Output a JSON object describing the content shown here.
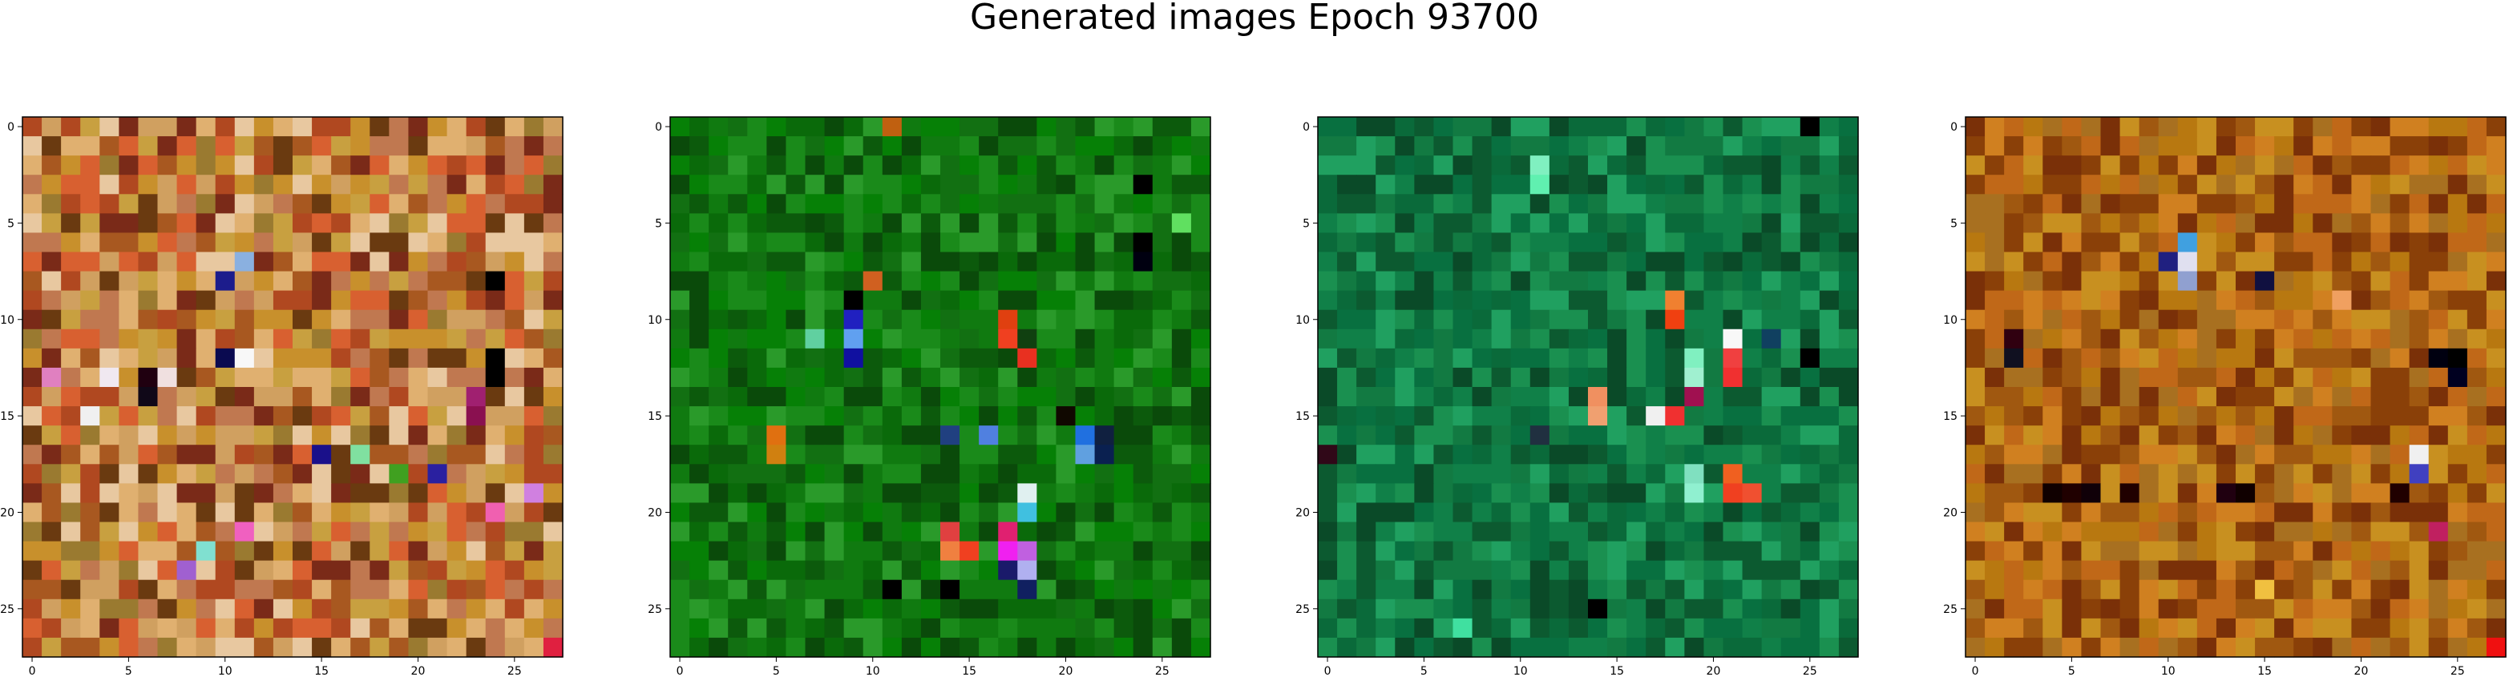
{
  "figure": {
    "title": "Generated images Epoch 93700"
  },
  "chart_data": [
    {
      "type": "heatmap",
      "title": "",
      "xlabel": "",
      "ylabel": "",
      "grid_size": 28,
      "xlim": [
        -0.5,
        27.5
      ],
      "ylim": [
        27.5,
        -0.5
      ],
      "x_ticks": [
        0,
        5,
        10,
        15,
        20,
        25
      ],
      "y_ticks": [
        0,
        5,
        10,
        15,
        20,
        25
      ],
      "x_tick_labels": [
        "0",
        "5",
        "10",
        "15",
        "20",
        "25"
      ],
      "y_tick_labels": [
        "0",
        "5",
        "10",
        "15",
        "20",
        "25"
      ],
      "palette": [
        "#c8902c",
        "#a85820",
        "#d0a060",
        "#7a2a18",
        "#c8a040",
        "#e0b070",
        "#9a7a30",
        "#d86030",
        "#b04820",
        "#e8c8a0",
        "#6a3a10",
        "#c07850"
      ],
      "accent_pixels": [
        {
          "row": 8,
          "col": 10,
          "color": "#1c1c8c"
        },
        {
          "row": 7,
          "col": 11,
          "color": "#8ab0e0"
        },
        {
          "row": 12,
          "col": 10,
          "color": "#0a0a50"
        },
        {
          "row": 12,
          "col": 11,
          "color": "#f8f8f8"
        },
        {
          "row": 13,
          "col": 7,
          "color": "#f0e0e0"
        },
        {
          "row": 13,
          "col": 6,
          "color": "#200010"
        },
        {
          "row": 14,
          "col": 6,
          "color": "#100818"
        },
        {
          "row": 12,
          "col": 24,
          "color": "#000000"
        },
        {
          "row": 13,
          "col": 24,
          "color": "#000000"
        },
        {
          "row": 8,
          "col": 24,
          "color": "#000000"
        },
        {
          "row": 14,
          "col": 23,
          "color": "#a02070"
        },
        {
          "row": 15,
          "col": 23,
          "color": "#8a1050"
        },
        {
          "row": 17,
          "col": 15,
          "color": "#1a108a"
        },
        {
          "row": 18,
          "col": 21,
          "color": "#2a20a0"
        },
        {
          "row": 17,
          "col": 17,
          "color": "#80e0a0"
        },
        {
          "row": 18,
          "col": 19,
          "color": "#40a020"
        },
        {
          "row": 13,
          "col": 1,
          "color": "#e080c0"
        },
        {
          "row": 21,
          "col": 11,
          "color": "#f060c0"
        },
        {
          "row": 23,
          "col": 8,
          "color": "#a060d0"
        },
        {
          "row": 22,
          "col": 9,
          "color": "#80e0d0"
        },
        {
          "row": 20,
          "col": 24,
          "color": "#f060b0"
        },
        {
          "row": 27,
          "col": 27,
          "color": "#e02040"
        },
        {
          "row": 15,
          "col": 3,
          "color": "#f0f0f0"
        },
        {
          "row": 13,
          "col": 4,
          "color": "#f0e8f0"
        },
        {
          "row": 19,
          "col": 26,
          "color": "#d080e0"
        }
      ]
    },
    {
      "type": "heatmap",
      "title": "",
      "xlabel": "",
      "ylabel": "",
      "grid_size": 28,
      "xlim": [
        -0.5,
        27.5
      ],
      "ylim": [
        27.5,
        -0.5
      ],
      "x_ticks": [
        0,
        5,
        10,
        15,
        20,
        25
      ],
      "y_ticks": [
        0,
        5,
        10,
        15,
        20,
        25
      ],
      "x_tick_labels": [
        "0",
        "5",
        "10",
        "15",
        "20",
        "25"
      ],
      "y_tick_labels": [
        "0",
        "5",
        "10",
        "15",
        "20",
        "25"
      ],
      "palette": [
        "#0a6a0a",
        "#107a10",
        "#0c5a0c",
        "#1a8a1a",
        "#0a4a0a",
        "#2a9a2a",
        "#068006",
        "#127012"
      ],
      "accent_pixels": [
        {
          "row": 0,
          "col": 11,
          "color": "#c06010"
        },
        {
          "row": 9,
          "col": 9,
          "color": "#000000"
        },
        {
          "row": 10,
          "col": 9,
          "color": "#000010"
        },
        {
          "row": 11,
          "col": 9,
          "color": "#000000"
        },
        {
          "row": 12,
          "col": 9,
          "color": "#000000"
        },
        {
          "row": 8,
          "col": 10,
          "color": "#d06020"
        },
        {
          "row": 10,
          "col": 9,
          "color": "#2020c0"
        },
        {
          "row": 11,
          "col": 9,
          "color": "#60a0f0"
        },
        {
          "row": 11,
          "col": 7,
          "color": "#60d0a0"
        },
        {
          "row": 12,
          "col": 9,
          "color": "#1010a0"
        },
        {
          "row": 10,
          "col": 17,
          "color": "#e04010"
        },
        {
          "row": 11,
          "col": 17,
          "color": "#f04020"
        },
        {
          "row": 12,
          "col": 18,
          "color": "#e83020"
        },
        {
          "row": 11,
          "col": 18,
          "color": "#104010"
        },
        {
          "row": 16,
          "col": 5,
          "color": "#e07010"
        },
        {
          "row": 17,
          "col": 5,
          "color": "#d08010"
        },
        {
          "row": 16,
          "col": 16,
          "color": "#5080e0"
        },
        {
          "row": 16,
          "col": 14,
          "color": "#204080"
        },
        {
          "row": 16,
          "col": 21,
          "color": "#2070e0"
        },
        {
          "row": 17,
          "col": 21,
          "color": "#60a0e0"
        },
        {
          "row": 16,
          "col": 22,
          "color": "#102040"
        },
        {
          "row": 17,
          "col": 22,
          "color": "#0a2050"
        },
        {
          "row": 15,
          "col": 20,
          "color": "#100800"
        },
        {
          "row": 19,
          "col": 18,
          "color": "#e0f0f0"
        },
        {
          "row": 20,
          "col": 18,
          "color": "#40c0e0"
        },
        {
          "row": 21,
          "col": 17,
          "color": "#e02070"
        },
        {
          "row": 22,
          "col": 17,
          "color": "#f020f0"
        },
        {
          "row": 22,
          "col": 18,
          "color": "#c060e0"
        },
        {
          "row": 23,
          "col": 17,
          "color": "#1a1a6a"
        },
        {
          "row": 23,
          "col": 18,
          "color": "#b0b0f0"
        },
        {
          "row": 21,
          "col": 14,
          "color": "#e04040"
        },
        {
          "row": 22,
          "col": 14,
          "color": "#f08040"
        },
        {
          "row": 22,
          "col": 15,
          "color": "#f04020"
        },
        {
          "row": 24,
          "col": 14,
          "color": "#000000"
        },
        {
          "row": 24,
          "col": 18,
          "color": "#102060"
        },
        {
          "row": 24,
          "col": 11,
          "color": "#000000"
        },
        {
          "row": 3,
          "col": 24,
          "color": "#000000"
        },
        {
          "row": 6,
          "col": 24,
          "color": "#000000"
        },
        {
          "row": 7,
          "col": 24,
          "color": "#000010"
        },
        {
          "row": 5,
          "col": 26,
          "color": "#60e060"
        }
      ]
    },
    {
      "type": "heatmap",
      "title": "",
      "xlabel": "",
      "ylabel": "",
      "grid_size": 28,
      "xlim": [
        -0.5,
        27.5
      ],
      "ylim": [
        27.5,
        -0.5
      ],
      "x_ticks": [
        0,
        5,
        10,
        15,
        20,
        25
      ],
      "y_ticks": [
        0,
        5,
        10,
        15,
        20,
        25
      ],
      "x_tick_labels": [
        "0",
        "5",
        "10",
        "15",
        "20",
        "25"
      ],
      "y_tick_labels": [
        "0",
        "5",
        "10",
        "15",
        "20",
        "25"
      ],
      "palette": [
        "#0a6a3a",
        "#108048",
        "#0c5a30",
        "#1a9050",
        "#0a4a28",
        "#20a060",
        "#087040",
        "#127a42"
      ],
      "accent_pixels": [
        {
          "row": 9,
          "col": 18,
          "color": "#f08030"
        },
        {
          "row": 10,
          "col": 18,
          "color": "#f04010"
        },
        {
          "row": 11,
          "col": 21,
          "color": "#f8f8f8"
        },
        {
          "row": 12,
          "col": 21,
          "color": "#f04040"
        },
        {
          "row": 13,
          "col": 21,
          "color": "#f03030"
        },
        {
          "row": 12,
          "col": 19,
          "color": "#80f0c0"
        },
        {
          "row": 13,
          "col": 19,
          "color": "#a0f0d0"
        },
        {
          "row": 14,
          "col": 19,
          "color": "#a01050"
        },
        {
          "row": 14,
          "col": 14,
          "color": "#f09060"
        },
        {
          "row": 15,
          "col": 14,
          "color": "#f0a070"
        },
        {
          "row": 15,
          "col": 17,
          "color": "#f0f0f0"
        },
        {
          "row": 15,
          "col": 18,
          "color": "#f03030"
        },
        {
          "row": 16,
          "col": 11,
          "color": "#203040"
        },
        {
          "row": 18,
          "col": 21,
          "color": "#f06020"
        },
        {
          "row": 19,
          "col": 21,
          "color": "#f04020"
        },
        {
          "row": 19,
          "col": 22,
          "color": "#f05030"
        },
        {
          "row": 18,
          "col": 19,
          "color": "#80e0c0"
        },
        {
          "row": 19,
          "col": 19,
          "color": "#90f0d0"
        },
        {
          "row": 12,
          "col": 25,
          "color": "#000000"
        },
        {
          "row": 11,
          "col": 23,
          "color": "#104060"
        },
        {
          "row": 17,
          "col": 0,
          "color": "#300818"
        },
        {
          "row": 25,
          "col": 14,
          "color": "#000000"
        },
        {
          "row": 26,
          "col": 7,
          "color": "#40e0a0"
        },
        {
          "row": 2,
          "col": 11,
          "color": "#80f0c0"
        },
        {
          "row": 3,
          "col": 11,
          "color": "#60f0b0"
        },
        {
          "row": 0,
          "col": 25,
          "color": "#000000"
        }
      ]
    },
    {
      "type": "heatmap",
      "title": "",
      "xlabel": "",
      "ylabel": "",
      "grid_size": 28,
      "xlim": [
        -0.5,
        27.5
      ],
      "ylim": [
        27.5,
        -0.5
      ],
      "x_ticks": [
        0,
        5,
        10,
        15,
        20,
        25
      ],
      "y_ticks": [
        0,
        5,
        10,
        15,
        20,
        25
      ],
      "x_tick_labels": [
        "0",
        "5",
        "10",
        "15",
        "20",
        "25"
      ],
      "y_tick_labels": [
        "0",
        "5",
        "10",
        "15",
        "20",
        "25"
      ],
      "palette": [
        "#b87810",
        "#a05810",
        "#c89020",
        "#8a4008",
        "#d08020",
        "#a87020",
        "#7a3008",
        "#c06818"
      ],
      "accent_pixels": [
        {
          "row": 6,
          "col": 11,
          "color": "#40a0e0"
        },
        {
          "row": 7,
          "col": 10,
          "color": "#202080"
        },
        {
          "row": 7,
          "col": 11,
          "color": "#e0e0f0"
        },
        {
          "row": 8,
          "col": 11,
          "color": "#90a0d0"
        },
        {
          "row": 8,
          "col": 15,
          "color": "#101040"
        },
        {
          "row": 12,
          "col": 2,
          "color": "#101020"
        },
        {
          "row": 11,
          "col": 2,
          "color": "#300010"
        },
        {
          "row": 12,
          "col": 25,
          "color": "#000000"
        },
        {
          "row": 12,
          "col": 24,
          "color": "#000010"
        },
        {
          "row": 13,
          "col": 25,
          "color": "#000020"
        },
        {
          "row": 17,
          "col": 23,
          "color": "#f0f0f0"
        },
        {
          "row": 18,
          "col": 23,
          "color": "#4040c0"
        },
        {
          "row": 19,
          "col": 22,
          "color": "#200000"
        },
        {
          "row": 19,
          "col": 4,
          "color": "#100000"
        },
        {
          "row": 19,
          "col": 5,
          "color": "#200000"
        },
        {
          "row": 19,
          "col": 6,
          "color": "#100008"
        },
        {
          "row": 19,
          "col": 8,
          "color": "#200000"
        },
        {
          "row": 19,
          "col": 13,
          "color": "#200010"
        },
        {
          "row": 19,
          "col": 14,
          "color": "#100000"
        },
        {
          "row": 21,
          "col": 24,
          "color": "#c02060"
        },
        {
          "row": 27,
          "col": 27,
          "color": "#f01010"
        },
        {
          "row": 24,
          "col": 15,
          "color": "#f0c040"
        },
        {
          "row": 9,
          "col": 19,
          "color": "#f0a060"
        }
      ]
    }
  ]
}
